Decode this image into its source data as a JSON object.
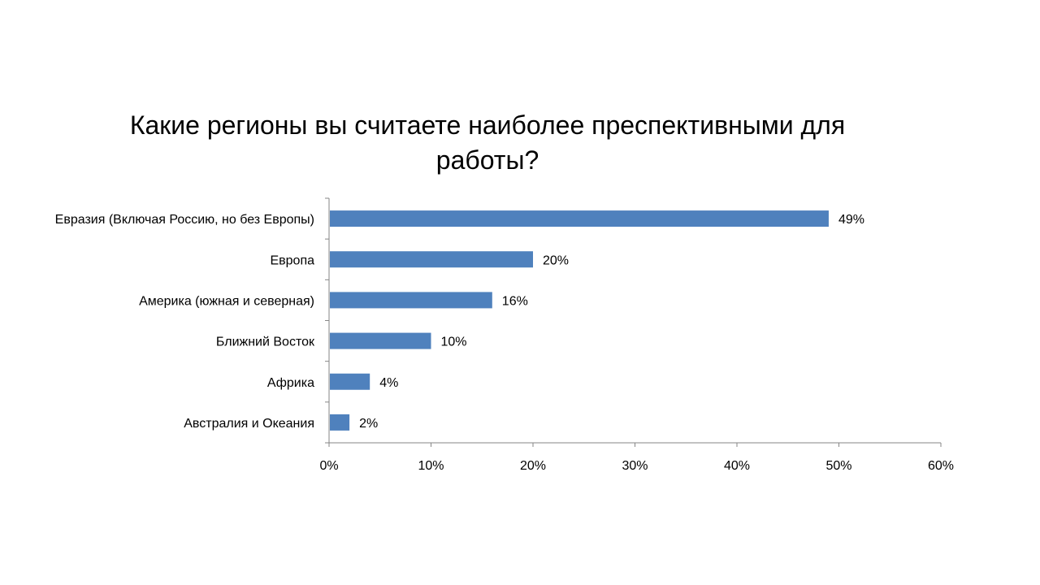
{
  "chart_data": {
    "type": "bar",
    "orientation": "horizontal",
    "title_lines": [
      "Какие регионы вы считаете наиболее преспективными для",
      "работы?"
    ],
    "categories": [
      "Евразия (Включая Россию, но без Европы)",
      "Европа",
      "Америка (южная и северная)",
      "Ближний Восток",
      "Африка",
      "Австралия и Океания"
    ],
    "values": [
      49,
      20,
      16,
      10,
      4,
      2
    ],
    "value_labels": [
      "49%",
      "20%",
      "16%",
      "10%",
      "4%",
      "2%"
    ],
    "xlim": [
      0,
      60
    ],
    "xticks": [
      0,
      10,
      20,
      30,
      40,
      50,
      60
    ],
    "xtick_labels": [
      "0%",
      "10%",
      "20%",
      "30%",
      "40%",
      "50%",
      "60%"
    ],
    "grid": false,
    "legend": "none",
    "bar_color": "#4F81BD",
    "axis_color": "#868686"
  }
}
